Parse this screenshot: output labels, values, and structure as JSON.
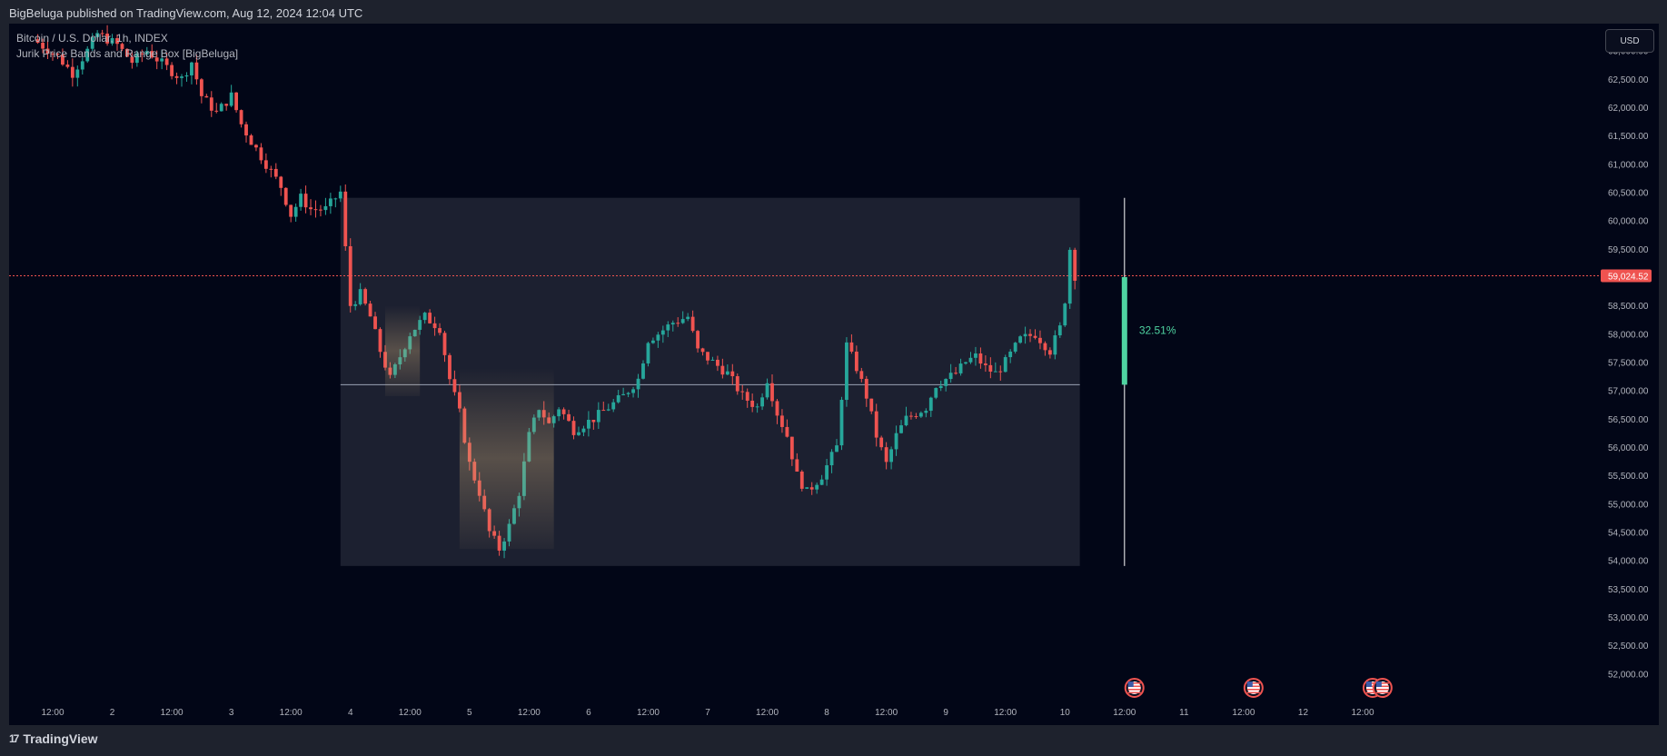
{
  "header": {
    "published_text": "BigBeluga published on TradingView.com, Aug 12, 2024 12:04 UTC"
  },
  "legend": {
    "symbol": "Bitcoin / U.S. Dollar, 1h, INDEX",
    "indicator": "Jurik Price Bands and Range Box [BigBeluga]"
  },
  "currency_button": "USD",
  "footer": {
    "brand": "TradingView",
    "logo_glyph": "17"
  },
  "colors": {
    "background": "#020617",
    "frame": "#1e222d",
    "up": "#26a69a",
    "down": "#ef5350",
    "range_box": "#1c2030",
    "range_pct": "#4fd3a1",
    "price_label_bg": "#ef5350",
    "axis_text": "#b2b5be"
  },
  "chart_data": {
    "type": "candlestick",
    "title": "Bitcoin / U.S. Dollar, 1h, INDEX",
    "indicator": "Jurik Price Bands and Range Box [BigBeluga]",
    "ylim": [
      51700,
      63700
    ],
    "y_ticks": [
      "63,000.00",
      "62,500.00",
      "62,000.00",
      "61,500.00",
      "61,000.00",
      "60,500.00",
      "60,000.00",
      "59,500.00",
      "59,000.00",
      "58,500.00",
      "58,000.00",
      "57,500.00",
      "57,000.00",
      "56,500.00",
      "56,000.00",
      "55,500.00",
      "55,000.00",
      "54,500.00",
      "54,000.00",
      "53,500.00",
      "53,000.00",
      "52,500.00",
      "52,000.00"
    ],
    "x_ticks": [
      {
        "label": "12:00",
        "hour": 0
      },
      {
        "label": "2",
        "hour": 12
      },
      {
        "label": "12:00",
        "hour": 24
      },
      {
        "label": "3",
        "hour": 36
      },
      {
        "label": "12:00",
        "hour": 48
      },
      {
        "label": "4",
        "hour": 60
      },
      {
        "label": "12:00",
        "hour": 72
      },
      {
        "label": "5",
        "hour": 84
      },
      {
        "label": "12:00",
        "hour": 96
      },
      {
        "label": "6",
        "hour": 108
      },
      {
        "label": "12:00",
        "hour": 120
      },
      {
        "label": "7",
        "hour": 132
      },
      {
        "label": "12:00",
        "hour": 144
      },
      {
        "label": "8",
        "hour": 156
      },
      {
        "label": "12:00",
        "hour": 168
      },
      {
        "label": "9",
        "hour": 180
      },
      {
        "label": "12:00",
        "hour": 192
      },
      {
        "label": "10",
        "hour": 204
      },
      {
        "label": "12:00",
        "hour": 216
      },
      {
        "label": "11",
        "hour": 228
      },
      {
        "label": "12:00",
        "hour": 240
      },
      {
        "label": "12",
        "hour": 252
      },
      {
        "label": "12:00",
        "hour": 264
      }
    ],
    "close_keypoints": [
      [
        -3,
        63200
      ],
      [
        2,
        62900
      ],
      [
        5,
        62600
      ],
      [
        8,
        63000
      ],
      [
        10,
        63300
      ],
      [
        14,
        63100
      ],
      [
        17,
        62800
      ],
      [
        20,
        63000
      ],
      [
        24,
        62700
      ],
      [
        27,
        62500
      ],
      [
        29,
        62800
      ],
      [
        31,
        62200
      ],
      [
        34,
        61900
      ],
      [
        37,
        62200
      ],
      [
        39,
        61700
      ],
      [
        41,
        61400
      ],
      [
        44,
        61000
      ],
      [
        47,
        60600
      ],
      [
        49,
        60100
      ],
      [
        51,
        60400
      ],
      [
        53,
        60200
      ],
      [
        56,
        60200
      ],
      [
        59,
        60500
      ],
      [
        61,
        58500
      ],
      [
        63,
        58700
      ],
      [
        65,
        58300
      ],
      [
        67,
        57700
      ],
      [
        69,
        57200
      ],
      [
        71,
        57600
      ],
      [
        73,
        58000
      ],
      [
        76,
        58300
      ],
      [
        79,
        58100
      ],
      [
        81,
        57200
      ],
      [
        83,
        56600
      ],
      [
        85,
        55700
      ],
      [
        87,
        55200
      ],
      [
        89,
        54500
      ],
      [
        91,
        54200
      ],
      [
        93,
        54600
      ],
      [
        95,
        55200
      ],
      [
        97,
        56200
      ],
      [
        99,
        56700
      ],
      [
        101,
        56400
      ],
      [
        103,
        56700
      ],
      [
        106,
        56300
      ],
      [
        108,
        56400
      ],
      [
        110,
        56500
      ],
      [
        113,
        56700
      ],
      [
        116,
        56900
      ],
      [
        119,
        57200
      ],
      [
        121,
        57900
      ],
      [
        123,
        58000
      ],
      [
        126,
        58200
      ],
      [
        129,
        58300
      ],
      [
        131,
        57700
      ],
      [
        134,
        57500
      ],
      [
        137,
        57300
      ],
      [
        140,
        56900
      ],
      [
        143,
        56700
      ],
      [
        145,
        57200
      ],
      [
        147,
        56600
      ],
      [
        149,
        56200
      ],
      [
        151,
        55500
      ],
      [
        153,
        55200
      ],
      [
        156,
        55500
      ],
      [
        159,
        56000
      ],
      [
        161,
        57800
      ],
      [
        163,
        57400
      ],
      [
        165,
        56900
      ],
      [
        167,
        56200
      ],
      [
        169,
        55700
      ],
      [
        171,
        56200
      ],
      [
        173,
        56500
      ],
      [
        175,
        56600
      ],
      [
        177,
        56700
      ],
      [
        179,
        57100
      ],
      [
        181,
        57200
      ],
      [
        183,
        57300
      ],
      [
        185,
        57500
      ],
      [
        187,
        57600
      ],
      [
        189,
        57400
      ],
      [
        191,
        57300
      ],
      [
        193,
        57500
      ],
      [
        196,
        57900
      ],
      [
        199,
        58000
      ],
      [
        202,
        57700
      ],
      [
        204,
        58100
      ],
      [
        205,
        58600
      ],
      [
        206,
        59500
      ],
      [
        206.8,
        59024.52
      ]
    ],
    "last_price": 59024.52,
    "last_price_label": "59,024.52",
    "range_box": {
      "x_start_hour": 58,
      "x_end_hour": 207,
      "top": 60400,
      "bottom": 53900,
      "mid": 57100
    },
    "range_measure": {
      "hour": 216,
      "low": 53900,
      "high": 60400,
      "fill_from": 57100,
      "fill_to": 59000,
      "label": "32.51%"
    },
    "event_markers": [
      {
        "hour": 218,
        "type": "us-flag"
      },
      {
        "hour": 242,
        "type": "us-flag"
      },
      {
        "hour": 266,
        "type": "us-flag"
      },
      {
        "hour": 268,
        "type": "us-flag"
      }
    ]
  }
}
